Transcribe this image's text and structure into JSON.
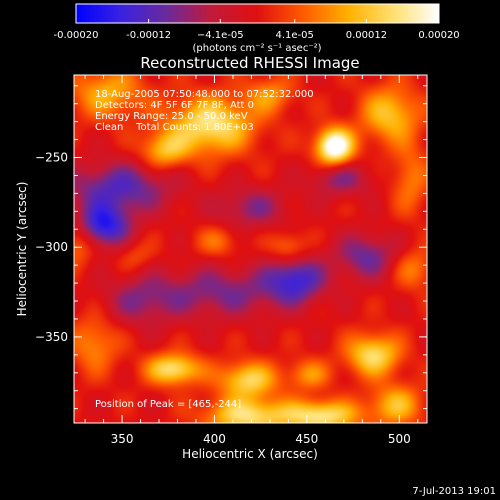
{
  "chart_data": {
    "type": "heatmap",
    "title": "Reconstructed RHESSI Image",
    "xlabel": "Heliocentric X (arcsec)",
    "ylabel": "Heliocentric Y (arcsec)",
    "xlim": [
      324,
      515
    ],
    "ylim": [
      -398,
      -204
    ],
    "xticks": [
      350,
      400,
      450,
      500
    ],
    "yticks": [
      -250,
      -300,
      -350
    ],
    "colorbar": {
      "unit_label": "(photons cm⁻² s⁻¹ asec⁻²)",
      "range": [
        -0.0002,
        0.0002
      ],
      "tick_values": [
        -0.0002,
        -0.00012,
        -4.1e-05,
        4.1e-05,
        0.00012,
        0.0002
      ],
      "tick_labels": [
        "-0.00020",
        "-0.00012",
        "−4.1e-05",
        "4.1e-05",
        "0.00012",
        "0.00020"
      ],
      "colors": [
        "#0000ff",
        "#3a22e0",
        "#6a2a9a",
        "#c21a3a",
        "#e01010",
        "#ff5a00",
        "#ffb000",
        "#ffe070",
        "#ffffff"
      ]
    },
    "annotations": [
      "18-Aug-2005 07:50:48.000 to 07:52:32.000",
      "Detectors: 4F 5F 6F 7F 8F, Att 0",
      "Energy Range: 25.0 - 50.0 keV",
      "Clean    Total Counts: 1.80E+03"
    ],
    "peak_text": "Position of Peak = [465,-244]",
    "peak": {
      "x": 465,
      "y": -244
    },
    "blobs": [
      {
        "x": 465,
        "y": -244,
        "sx": 7,
        "sy": 7,
        "v": 0.00024
      },
      {
        "x": 398,
        "y": -232,
        "sx": 16,
        "sy": 11,
        "v": 0.00016
      },
      {
        "x": 373,
        "y": -246,
        "sx": 9,
        "sy": 7,
        "v": 0.00011
      },
      {
        "x": 342,
        "y": -214,
        "sx": 14,
        "sy": 10,
        "v": 0.0001
      },
      {
        "x": 430,
        "y": -215,
        "sx": 9,
        "sy": 7,
        "v": 8e-05
      },
      {
        "x": 495,
        "y": -226,
        "sx": 11,
        "sy": 11,
        "v": 0.00012
      },
      {
        "x": 506,
        "y": -262,
        "sx": 7,
        "sy": 13,
        "v": 7e-05
      },
      {
        "x": 326,
        "y": -297,
        "sx": 6,
        "sy": 9,
        "v": 7e-05
      },
      {
        "x": 358,
        "y": -305,
        "sx": 7,
        "sy": 6,
        "v": 4e-05
      },
      {
        "x": 402,
        "y": -297,
        "sx": 8,
        "sy": 6,
        "v": 6e-05
      },
      {
        "x": 440,
        "y": -300,
        "sx": 7,
        "sy": 6,
        "v": 7e-05
      },
      {
        "x": 508,
        "y": -312,
        "sx": 8,
        "sy": 8,
        "v": 7e-05
      },
      {
        "x": 335,
        "y": -354,
        "sx": 9,
        "sy": 11,
        "v": 8e-05
      },
      {
        "x": 378,
        "y": -368,
        "sx": 10,
        "sy": 6,
        "v": 0.00016
      },
      {
        "x": 418,
        "y": -374,
        "sx": 11,
        "sy": 7,
        "v": 0.00014
      },
      {
        "x": 451,
        "y": -371,
        "sx": 8,
        "sy": 6,
        "v": 8e-05
      },
      {
        "x": 486,
        "y": -360,
        "sx": 10,
        "sy": 8,
        "v": 0.00015
      },
      {
        "x": 418,
        "y": -394,
        "sx": 16,
        "sy": 7,
        "v": 0.00015
      },
      {
        "x": 458,
        "y": -394,
        "sx": 14,
        "sy": 6,
        "v": 0.00016
      },
      {
        "x": 498,
        "y": -388,
        "sx": 10,
        "sy": 8,
        "v": 0.00011
      },
      {
        "x": 348,
        "y": -267,
        "sx": 20,
        "sy": 10,
        "v": -0.00012
      },
      {
        "x": 340,
        "y": -288,
        "sx": 10,
        "sy": 8,
        "v": -0.00016
      },
      {
        "x": 420,
        "y": -278,
        "sx": 14,
        "sy": 8,
        "v": -8e-05
      },
      {
        "x": 404,
        "y": -325,
        "sx": 26,
        "sy": 10,
        "v": -9e-05
      },
      {
        "x": 444,
        "y": -318,
        "sx": 11,
        "sy": 9,
        "v": -0.00013
      },
      {
        "x": 482,
        "y": -305,
        "sx": 12,
        "sy": 9,
        "v": -0.0001
      },
      {
        "x": 468,
        "y": -262,
        "sx": 12,
        "sy": 7,
        "v": -8e-05
      },
      {
        "x": 360,
        "y": -330,
        "sx": 14,
        "sy": 10,
        "v": -7e-05
      }
    ]
  },
  "footer": {
    "timestamp": "7-Jul-2013 19:01"
  }
}
